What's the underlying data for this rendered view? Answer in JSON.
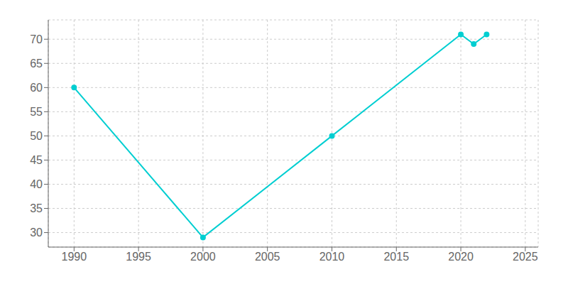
{
  "chart_data": {
    "type": "line",
    "x": [
      1990,
      2000,
      2010,
      2020,
      2021,
      2022
    ],
    "values": [
      60,
      29,
      50,
      71,
      69,
      71
    ],
    "color": "#00CED1",
    "marker": "circle",
    "xlim": [
      1988,
      2026
    ],
    "ylim": [
      27,
      74
    ],
    "xticks": [
      1990,
      1995,
      2000,
      2005,
      2010,
      2015,
      2020,
      2025
    ],
    "yticks": [
      30,
      35,
      40,
      45,
      50,
      55,
      60,
      65,
      70
    ],
    "grid": true
  }
}
